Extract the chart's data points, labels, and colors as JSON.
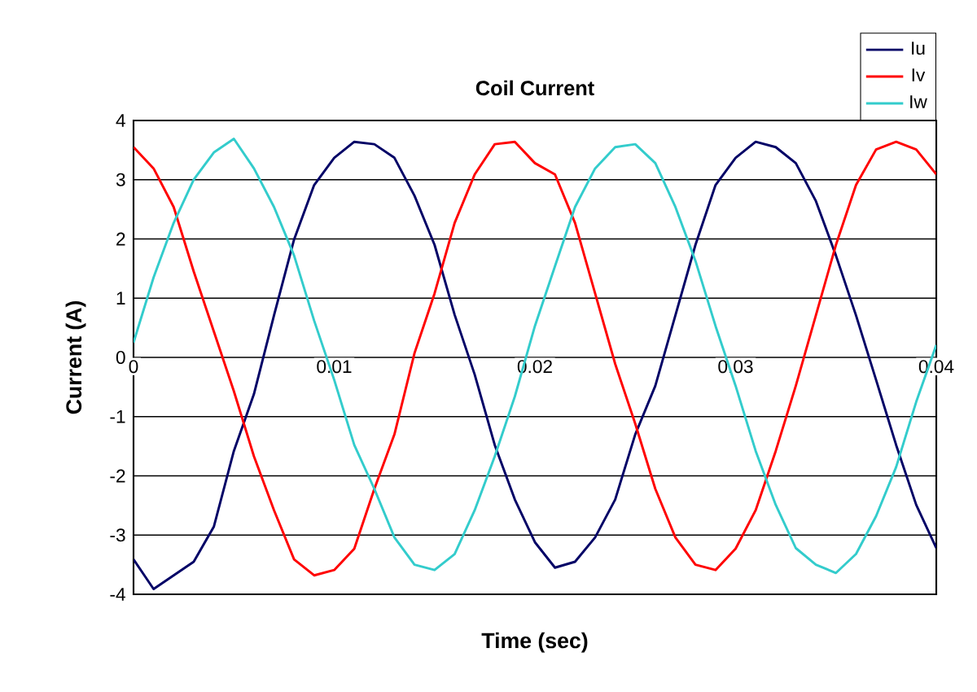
{
  "chart_data": {
    "type": "line",
    "title": "Coil Current",
    "xlabel": "Time (sec)",
    "ylabel": "Current (A)",
    "x": [
      0,
      0.001,
      0.002,
      0.003,
      0.004,
      0.005,
      0.006,
      0.007,
      0.008,
      0.009,
      0.01,
      0.011,
      0.012,
      0.013,
      0.014,
      0.015,
      0.016,
      0.017,
      0.018,
      0.019,
      0.02,
      0.021,
      0.022,
      0.023,
      0.024,
      0.025,
      0.026,
      0.027,
      0.028,
      0.029,
      0.03,
      0.031,
      0.032,
      0.033,
      0.034,
      0.035,
      0.036,
      0.037,
      0.038,
      0.039,
      0.04
    ],
    "series": [
      {
        "name": "Iu",
        "color": "#000066",
        "values": [
          -3.41,
          -3.91,
          -3.68,
          -3.45,
          -2.86,
          -1.58,
          -0.62,
          0.71,
          1.99,
          2.91,
          3.37,
          3.64,
          3.6,
          3.37,
          2.73,
          1.9,
          0.72,
          -0.29,
          -1.48,
          -2.4,
          -3.12,
          -3.55,
          -3.45,
          -3.04,
          -2.4,
          -1.3,
          -0.48,
          0.71,
          1.9,
          2.91,
          3.37,
          3.64,
          3.55,
          3.28,
          2.64,
          1.72,
          0.71,
          -0.38,
          -1.48,
          -2.49,
          -3.22
        ]
      },
      {
        "name": "Iv",
        "color": "#ff0000",
        "values": [
          3.55,
          3.19,
          2.54,
          1.45,
          0.44,
          -0.57,
          -1.67,
          -2.58,
          -3.41,
          -3.68,
          -3.59,
          -3.23,
          -2.22,
          -1.3,
          0.07,
          1.08,
          2.27,
          3.09,
          3.6,
          3.64,
          3.28,
          3.09,
          2.27,
          1.08,
          -0.11,
          -1.12,
          -2.22,
          -3.04,
          -3.5,
          -3.59,
          -3.23,
          -2.58,
          -1.58,
          -0.48,
          0.71,
          1.9,
          2.91,
          3.51,
          3.64,
          3.51,
          3.09
        ]
      },
      {
        "name": "Iw",
        "color": "#33cccc",
        "values": [
          0.25,
          1.35,
          2.27,
          3.0,
          3.46,
          3.69,
          3.19,
          2.54,
          1.72,
          0.62,
          -0.38,
          -1.48,
          -2.22,
          -3.04,
          -3.5,
          -3.59,
          -3.32,
          -2.58,
          -1.67,
          -0.66,
          0.53,
          1.54,
          2.54,
          3.19,
          3.55,
          3.6,
          3.28,
          2.54,
          1.63,
          0.53,
          -0.48,
          -1.58,
          -2.49,
          -3.22,
          -3.5,
          -3.64,
          -3.32,
          -2.68,
          -1.85,
          -0.75,
          0.21
        ]
      }
    ],
    "xlim": [
      0,
      0.04
    ],
    "xticks": [
      0,
      0.01,
      0.02,
      0.03,
      0.04
    ],
    "ylim": [
      -4,
      4
    ],
    "yticks": [
      -4,
      -3,
      -2,
      -1,
      0,
      1,
      2,
      3,
      4
    ],
    "grid": "y",
    "legend": "top right",
    "marker": "none",
    "line_style": "solid"
  }
}
